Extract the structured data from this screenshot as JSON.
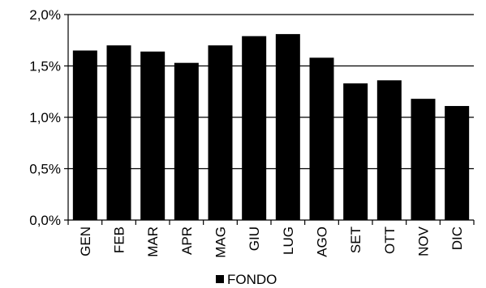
{
  "chart_data": {
    "type": "bar",
    "categories": [
      "GEN",
      "FEB",
      "MAR",
      "APR",
      "MAG",
      "GIU",
      "LUG",
      "AGO",
      "SET",
      "OTT",
      "NOV",
      "DIC"
    ],
    "series": [
      {
        "name": "FONDO",
        "values": [
          1.65,
          1.7,
          1.64,
          1.53,
          1.7,
          1.79,
          1.81,
          1.58,
          1.33,
          1.36,
          1.18,
          1.11
        ],
        "color": "#000000"
      }
    ],
    "ylim": [
      0,
      2.0
    ],
    "yticks": [
      0,
      0.5,
      1.0,
      1.5,
      2.0
    ],
    "ytick_labels": [
      "0,0%",
      "0,5%",
      "1,0%",
      "1,5%",
      "2,0%"
    ],
    "grid": true,
    "legend_position": "bottom-center"
  }
}
